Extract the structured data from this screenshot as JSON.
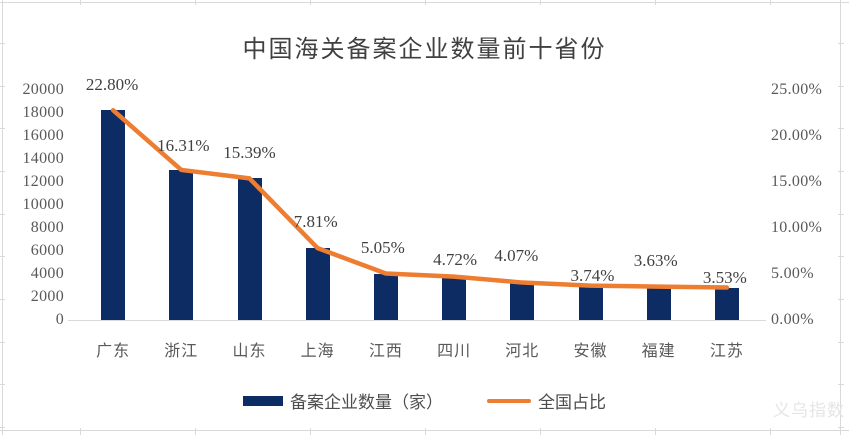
{
  "watermark": "义乌指数",
  "colors": {
    "bar": "#0E2C64",
    "line": "#ED7D31",
    "title_text": "#404040",
    "axis_text": "#595959",
    "data_label_text": "#404040",
    "legend_text": "#4D4D4D",
    "axis_line": "#D9D9D9",
    "sheet_gridline": "#D9D9D9",
    "watermark_text": "#E5E5E5",
    "background": "#FFFFFF"
  },
  "legend": {
    "items": [
      {
        "label": "备案企业数量（家）",
        "swatch": "bar"
      },
      {
        "label": "全国占比",
        "swatch": "line"
      }
    ]
  },
  "chart_data": {
    "type": "bar",
    "overlay": "line (secondary percentage axis)",
    "title": "中国海关备案企业数量前十省份",
    "categories": [
      "广东",
      "浙江",
      "山东",
      "上海",
      "江西",
      "四川",
      "河北",
      "安徽",
      "福建",
      "江苏"
    ],
    "series": [
      {
        "name": "备案企业数量（家）",
        "type": "bar",
        "axis": "left",
        "values": [
          18240,
          13048,
          12312,
          6248,
          4040,
          3776,
          3256,
          2992,
          2904,
          2824
        ]
      },
      {
        "name": "全国占比",
        "type": "line",
        "axis": "right",
        "values_pct": [
          22.8,
          16.31,
          15.39,
          7.81,
          5.05,
          4.72,
          4.07,
          3.74,
          3.63,
          3.53
        ],
        "point_labels": [
          "22.80%",
          "16.31%",
          "15.39%",
          "7.81%",
          "5.05%",
          "4.72%",
          "4.07%",
          "3.74%",
          "3.63%",
          "3.53%"
        ]
      }
    ],
    "left_axis": {
      "min": 0,
      "max": 20000,
      "step": 2000,
      "tick_labels": [
        "20000",
        "18000",
        "16000",
        "14000",
        "12000",
        "10000",
        "8000",
        "6000",
        "4000",
        "2000",
        "0"
      ]
    },
    "right_axis": {
      "min": 0,
      "max": 25,
      "step": 5,
      "tick_labels": [
        "25.00%",
        "20.00%",
        "15.00%",
        "10.00%",
        "5.00%",
        "0.00%"
      ]
    },
    "grid": false,
    "legend_position": "bottom"
  }
}
